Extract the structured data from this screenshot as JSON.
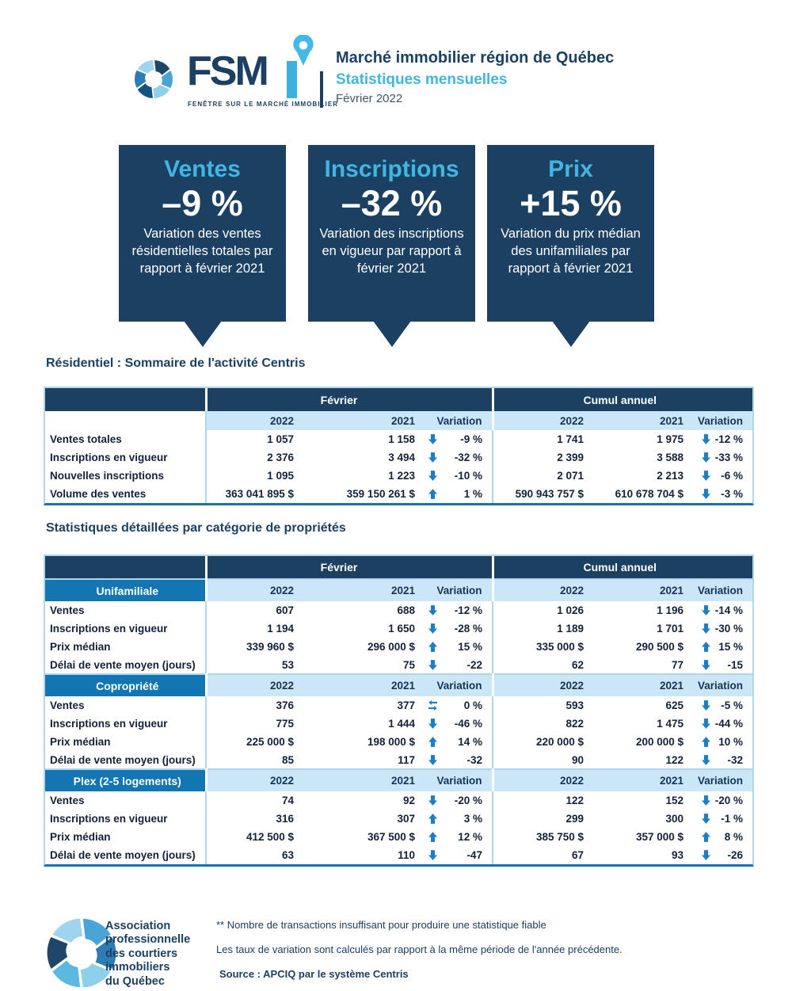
{
  "colors": {
    "navy": "#1b4062",
    "cyan": "#41b6e2",
    "category_blue": "#1375b2",
    "light_blue_bg": "#cbe7f7",
    "table_border": "#aed6ec",
    "arrow_blue": "#1f7dc1",
    "ink": "#15213a"
  },
  "header": {
    "brand": "FSM",
    "brand_accent": "I",
    "tagline": "FENÊTRE SUR LE MARCHÉ IMMOBILIER",
    "title": "Marché immobilier région de Québec",
    "subtitle": "Statistiques mensuelles",
    "date": "Février 2022"
  },
  "callouts": [
    {
      "label": "Ventes",
      "value": "–9 %",
      "description": "Variation des ventes résidentielles totales par rapport à février 2021"
    },
    {
      "label": "Inscriptions",
      "value": "–32 %",
      "description": "Variation des inscriptions en vigueur par rapport à février 2021"
    },
    {
      "label": "Prix",
      "value": "+15 %",
      "description": "Variation du prix médian des unifamiliales par rapport à février 2021"
    }
  ],
  "summary_table": {
    "title": "Résidentiel : Sommaire de l'activité Centris",
    "period_headers": [
      "Février",
      "Cumul annuel"
    ],
    "year_headers": [
      "2022",
      "2021",
      "Variation"
    ],
    "sections": [
      {
        "category": null,
        "rows": [
          {
            "label": "Ventes totales",
            "feb": {
              "v2022": "1 057",
              "v2021": "1 158",
              "trend": "down",
              "variation": "-9 %"
            },
            "cumul": {
              "v2022": "1 741",
              "v2021": "1 975",
              "trend": "down",
              "variation": "-12 %"
            }
          },
          {
            "label": "Inscriptions en vigueur",
            "feb": {
              "v2022": "2 376",
              "v2021": "3 494",
              "trend": "down",
              "variation": "-32 %"
            },
            "cumul": {
              "v2022": "2 399",
              "v2021": "3 588",
              "trend": "down",
              "variation": "-33 %"
            }
          },
          {
            "label": "Nouvelles inscriptions",
            "feb": {
              "v2022": "1 095",
              "v2021": "1 223",
              "trend": "down",
              "variation": "-10 %"
            },
            "cumul": {
              "v2022": "2 071",
              "v2021": "2 213",
              "trend": "down",
              "variation": "-6 %"
            }
          },
          {
            "label": "Volume des ventes",
            "feb": {
              "v2022": "363 041 895 $",
              "v2021": "359 150 261 $",
              "trend": "up",
              "variation": "1 %"
            },
            "cumul": {
              "v2022": "590 943 757 $",
              "v2021": "610 678 704 $",
              "trend": "down",
              "variation": "-3 %"
            }
          }
        ]
      }
    ]
  },
  "detail_table": {
    "title": "Statistiques détaillées par catégorie de propriétés",
    "period_headers": [
      "Février",
      "Cumul annuel"
    ],
    "year_headers": [
      "2022",
      "2021",
      "Variation"
    ],
    "sections": [
      {
        "category": "Unifamiliale",
        "rows": [
          {
            "label": "Ventes",
            "feb": {
              "v2022": "607",
              "v2021": "688",
              "trend": "down",
              "variation": "-12 %"
            },
            "cumul": {
              "v2022": "1 026",
              "v2021": "1 196",
              "trend": "down",
              "variation": "-14 %"
            }
          },
          {
            "label": "Inscriptions en vigueur",
            "feb": {
              "v2022": "1 194",
              "v2021": "1 650",
              "trend": "down",
              "variation": "-28 %"
            },
            "cumul": {
              "v2022": "1 189",
              "v2021": "1 701",
              "trend": "down",
              "variation": "-30 %"
            }
          },
          {
            "label": "Prix médian",
            "feb": {
              "v2022": "339 960 $",
              "v2021": "296 000 $",
              "trend": "up",
              "variation": "15 %"
            },
            "cumul": {
              "v2022": "335 000 $",
              "v2021": "290 500 $",
              "trend": "up",
              "variation": "15 %"
            }
          },
          {
            "label": "Délai de vente moyen (jours)",
            "feb": {
              "v2022": "53",
              "v2021": "75",
              "trend": "down",
              "variation": "-22"
            },
            "cumul": {
              "v2022": "62",
              "v2021": "77",
              "trend": "down",
              "variation": "-15"
            }
          }
        ]
      },
      {
        "category": "Copropriété",
        "rows": [
          {
            "label": "Ventes",
            "feb": {
              "v2022": "376",
              "v2021": "377",
              "trend": "stable",
              "variation": "0 %"
            },
            "cumul": {
              "v2022": "593",
              "v2021": "625",
              "trend": "down",
              "variation": "-5 %"
            }
          },
          {
            "label": "Inscriptions en vigueur",
            "feb": {
              "v2022": "775",
              "v2021": "1 444",
              "trend": "down",
              "variation": "-46 %"
            },
            "cumul": {
              "v2022": "822",
              "v2021": "1 475",
              "trend": "down",
              "variation": "-44 %"
            }
          },
          {
            "label": "Prix médian",
            "feb": {
              "v2022": "225 000 $",
              "v2021": "198 000 $",
              "trend": "up",
              "variation": "14 %"
            },
            "cumul": {
              "v2022": "220 000 $",
              "v2021": "200 000 $",
              "trend": "up",
              "variation": "10 %"
            }
          },
          {
            "label": "Délai de vente moyen (jours)",
            "feb": {
              "v2022": "85",
              "v2021": "117",
              "trend": "down",
              "variation": "-32"
            },
            "cumul": {
              "v2022": "90",
              "v2021": "122",
              "trend": "down",
              "variation": "-32"
            }
          }
        ]
      },
      {
        "category": "Plex (2-5 logements)",
        "rows": [
          {
            "label": "Ventes",
            "feb": {
              "v2022": "74",
              "v2021": "92",
              "trend": "down",
              "variation": "-20 %"
            },
            "cumul": {
              "v2022": "122",
              "v2021": "152",
              "trend": "down",
              "variation": "-20 %"
            }
          },
          {
            "label": "Inscriptions en vigueur",
            "feb": {
              "v2022": "316",
              "v2021": "307",
              "trend": "up",
              "variation": "3 %"
            },
            "cumul": {
              "v2022": "299",
              "v2021": "300",
              "trend": "down",
              "variation": "-1 %"
            }
          },
          {
            "label": "Prix médian",
            "feb": {
              "v2022": "412 500 $",
              "v2021": "367 500 $",
              "trend": "up",
              "variation": "12 %"
            },
            "cumul": {
              "v2022": "385 750 $",
              "v2021": "357 000 $",
              "trend": "up",
              "variation": "8 %"
            }
          },
          {
            "label": "Délai de vente moyen (jours)",
            "feb": {
              "v2022": "63",
              "v2021": "110",
              "trend": "down",
              "variation": "-47"
            },
            "cumul": {
              "v2022": "67",
              "v2021": "93",
              "trend": "down",
              "variation": "-26"
            }
          }
        ]
      }
    ]
  },
  "footer": {
    "org_lines": [
      "Association",
      "professionnelle",
      "des courtiers",
      "immobiliers",
      "du Québec"
    ],
    "note1": "** Nombre de transactions insuffisant pour produire une statistique fiable",
    "note2": "Les taux de variation sont calculés par rapport à la même période de l'année précédente.",
    "source": "Source : APCIQ par le système Centris"
  }
}
